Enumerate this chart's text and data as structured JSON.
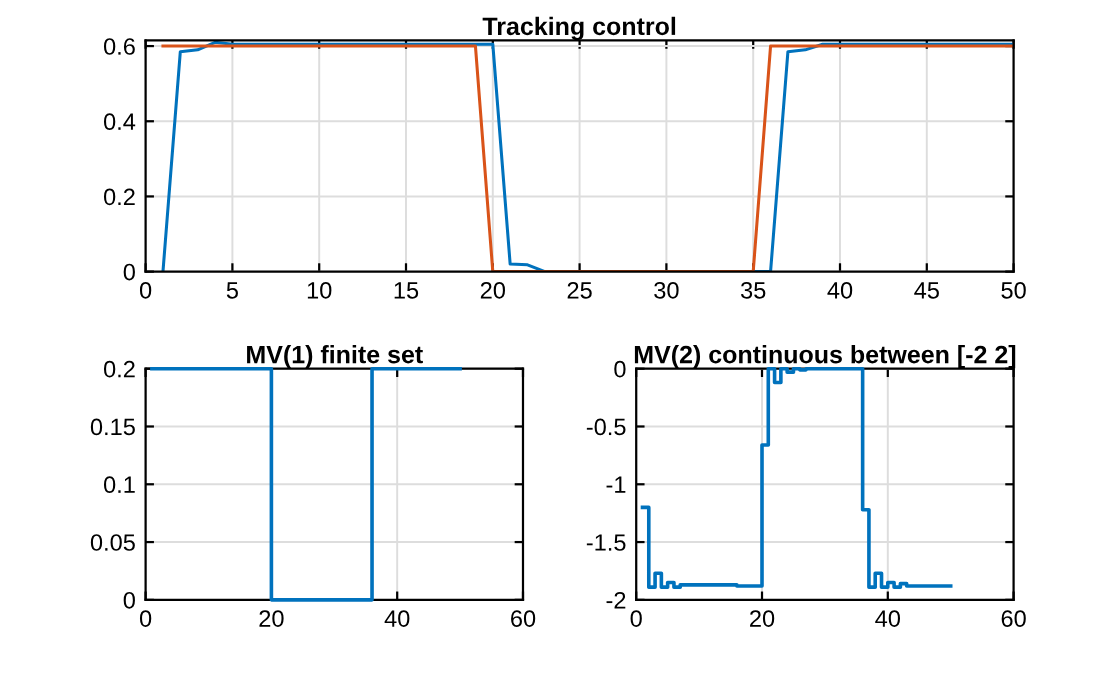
{
  "chart_data": [
    {
      "type": "line",
      "title": "Tracking control",
      "xlim": [
        0,
        50
      ],
      "ylim": [
        0,
        0.615
      ],
      "xticks": [
        0,
        5,
        10,
        15,
        20,
        25,
        30,
        35,
        40,
        45,
        50
      ],
      "yticks": [
        0,
        0.2,
        0.4,
        0.6
      ],
      "grid": true,
      "series": [
        {
          "color": "#0072bd",
          "x": [
            1,
            2,
            3,
            4,
            5,
            19,
            20,
            21,
            22,
            23,
            24,
            35,
            36,
            37,
            38,
            39,
            40,
            50
          ],
          "values": [
            0,
            0.585,
            0.59,
            0.61,
            0.605,
            0.605,
            0.605,
            0.02,
            0.018,
            0,
            0,
            0,
            0,
            0.585,
            0.59,
            0.605,
            0.605,
            0.605
          ]
        },
        {
          "color": "#d95319",
          "x": [
            1,
            19,
            20,
            35,
            36,
            50
          ],
          "values": [
            0.6,
            0.6,
            0,
            0,
            0.6,
            0.6
          ]
        }
      ]
    },
    {
      "type": "step",
      "title": "MV(1) finite set",
      "xlim": [
        0,
        60
      ],
      "ylim": [
        0,
        0.2
      ],
      "xticks": [
        0,
        20,
        40,
        60
      ],
      "yticks": [
        0,
        0.05,
        0.1,
        0.15,
        0.2
      ],
      "grid": true,
      "series": [
        {
          "color": "#0072bd",
          "x": [
            1,
            20,
            36,
            50
          ],
          "values": [
            0.2,
            0,
            0.2,
            0.2
          ]
        }
      ]
    },
    {
      "type": "step",
      "title": "MV(2) continuous between [-2 2]",
      "xlim": [
        0,
        60
      ],
      "ylim": [
        -2,
        0
      ],
      "xticks": [
        0,
        20,
        40,
        60
      ],
      "yticks": [
        -2,
        -1.5,
        -1,
        -0.5,
        0
      ],
      "grid": true,
      "series": [
        {
          "color": "#0072bd",
          "x": [
            1,
            2,
            3,
            4,
            5,
            6,
            7,
            16,
            20,
            21,
            22,
            23,
            24,
            25,
            26,
            27,
            36,
            37,
            38,
            39,
            40,
            41,
            42,
            43,
            50
          ],
          "values": [
            -1.2,
            -1.89,
            -1.77,
            -1.89,
            -1.85,
            -1.89,
            -1.87,
            -1.88,
            -0.66,
            0,
            -0.12,
            0,
            -0.03,
            0,
            -0.01,
            0,
            -1.22,
            -1.89,
            -1.77,
            -1.89,
            -1.85,
            -1.89,
            -1.86,
            -1.88,
            -1.88
          ]
        }
      ]
    }
  ]
}
